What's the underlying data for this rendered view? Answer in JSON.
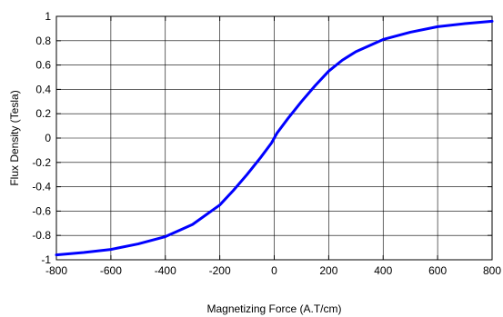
{
  "chart_data": {
    "type": "line",
    "title": "",
    "xlabel": "Magnetizing Force (A.T/cm)",
    "ylabel": "Flux Density (Tesla)",
    "xlim": [
      -800,
      800
    ],
    "ylim": [
      -1,
      1
    ],
    "x_ticks": [
      -800,
      -600,
      -400,
      -200,
      0,
      200,
      400,
      600,
      800
    ],
    "y_ticks": [
      -1,
      -0.8,
      -0.6,
      -0.4,
      -0.2,
      0,
      0.2,
      0.4,
      0.6,
      0.8,
      1
    ],
    "x_tick_labels": [
      "-800",
      "-600",
      "-400",
      "-200",
      "0",
      "200",
      "400",
      "600",
      "800"
    ],
    "y_tick_labels": [
      "-1",
      "-0.8",
      "-0.6",
      "-0.4",
      "-0.2",
      "0",
      "0.2",
      "0.4",
      "0.6",
      "0.8",
      "1"
    ],
    "grid": true,
    "legend": "none",
    "series": [
      {
        "color": "#0000ff",
        "x": [
          -800,
          -700,
          -600,
          -500,
          -400,
          -300,
          -200,
          -150,
          -100,
          -50,
          -10,
          0,
          10,
          50,
          100,
          150,
          200,
          250,
          300,
          400,
          500,
          600,
          700,
          800
        ],
        "y": [
          -0.96,
          -0.94,
          -0.915,
          -0.87,
          -0.81,
          -0.71,
          -0.55,
          -0.43,
          -0.3,
          -0.16,
          -0.04,
          0,
          0.04,
          0.16,
          0.3,
          0.43,
          0.55,
          0.64,
          0.71,
          0.81,
          0.87,
          0.915,
          0.94,
          0.96
        ]
      }
    ]
  }
}
